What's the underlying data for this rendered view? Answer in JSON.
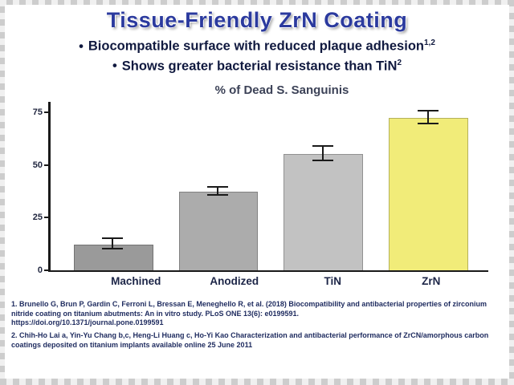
{
  "slide": {
    "title": "Tissue-Friendly ZrN Coating",
    "bullet_marker": "•",
    "bullets": [
      {
        "text": "Biocompatible surface with reduced plaque adhesion",
        "sup": "1,2"
      },
      {
        "text": "Shows greater bacterial resistance than TiN",
        "sup": "2"
      }
    ],
    "footnotes": [
      {
        "text": "1. Brunello G, Brun P, Gardin C, Ferroni L, Bressan E, Meneghello R, et al. (2018) Biocompatibility and antibacterial properties of zirconium nitride coating on titanium abutments: An in vitro study. PLoS ONE 13(6): e0199591.",
        "url": "https://doi.org/10.1371/journal.pone.0199591"
      },
      {
        "text": "2. Chih-Ho Lai a, Yin-Yu Chang b,c, Heng-Li Huang c, Ho-Yi Kao Characterization and antibacterial performance of ZrCN/amorphous carbon coatings deposited on titanium implants available online 25 June 2011",
        "url": ""
      }
    ]
  },
  "colors": {
    "title_blue": "#2b3a9e",
    "bullet_navy": "#10193f",
    "footnote_navy": "#1d2a5e",
    "axis_black": "#1a1a1a",
    "zrn_yellow": "#f1ec79"
  },
  "chart_data": {
    "type": "bar",
    "title": "% of Dead S. Sanguinis",
    "categories": [
      "Machined",
      "Anodized",
      "TiN",
      "ZrN"
    ],
    "values": [
      12,
      37,
      55,
      72
    ],
    "errors": [
      2,
      1.5,
      3,
      2.5
    ],
    "bar_colors": [
      "#9a9a9a",
      "#acacac",
      "#c2c2c2",
      "#f1ec79"
    ],
    "xlabel": "",
    "ylabel": "",
    "ylim": [
      0,
      80
    ],
    "yticks": [
      0,
      25,
      50,
      75
    ],
    "grid": false,
    "legend": "none"
  }
}
